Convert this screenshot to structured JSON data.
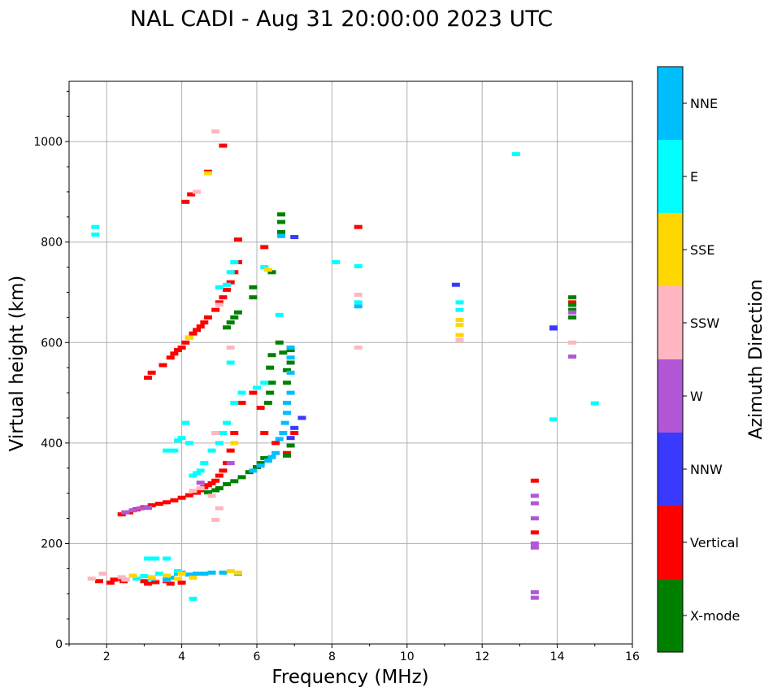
{
  "chart_data": {
    "type": "scatter",
    "title": "NAL CADI - Aug 31 20:00:00 2023 UTC",
    "xlabel": "Frequency (MHz)",
    "ylabel": "Virtual height (km)",
    "xlim": [
      1,
      16
    ],
    "ylim": [
      0,
      1120
    ],
    "xticks": [
      2,
      4,
      6,
      8,
      10,
      12,
      14,
      16
    ],
    "yticks": [
      0,
      200,
      400,
      600,
      800,
      1000
    ],
    "grid": true,
    "colorbar": {
      "title": "Azimuth Direction",
      "categories": [
        {
          "name": "X-mode",
          "color": "#008000"
        },
        {
          "name": "Vertical",
          "color": "#ff0000"
        },
        {
          "name": "NNW",
          "color": "#3a3aff"
        },
        {
          "name": "W",
          "color": "#b157d6"
        },
        {
          "name": "SSW",
          "color": "#ffb6c1"
        },
        {
          "name": "SSE",
          "color": "#ffd700"
        },
        {
          "name": "E",
          "color": "#00ffff"
        },
        {
          "name": "NNE",
          "color": "#00bfff"
        }
      ]
    },
    "series": [
      {
        "name": "Vertical",
        "points": [
          [
            1.8,
            125
          ],
          [
            2.1,
            122
          ],
          [
            2.2,
            128
          ],
          [
            2.4,
            130
          ],
          [
            2.45,
            125
          ],
          [
            2.5,
            128
          ],
          [
            3.0,
            125
          ],
          [
            3.1,
            120
          ],
          [
            3.3,
            123
          ],
          [
            3.6,
            125
          ],
          [
            3.7,
            120
          ],
          [
            4.0,
            122
          ],
          [
            4.4,
            140
          ],
          [
            2.4,
            258
          ],
          [
            2.6,
            262
          ],
          [
            2.8,
            268
          ],
          [
            3.0,
            272
          ],
          [
            3.2,
            276
          ],
          [
            3.4,
            279
          ],
          [
            3.6,
            282
          ],
          [
            3.8,
            286
          ],
          [
            4.0,
            291
          ],
          [
            4.2,
            296
          ],
          [
            4.4,
            301
          ],
          [
            4.5,
            306
          ],
          [
            4.6,
            312
          ],
          [
            4.7,
            316
          ],
          [
            4.8,
            320
          ],
          [
            4.9,
            325
          ],
          [
            5.0,
            335
          ],
          [
            5.1,
            345
          ],
          [
            5.2,
            360
          ],
          [
            5.3,
            385
          ],
          [
            5.4,
            420
          ],
          [
            5.6,
            480
          ],
          [
            3.1,
            530
          ],
          [
            3.2,
            540
          ],
          [
            3.5,
            555
          ],
          [
            3.7,
            570
          ],
          [
            3.8,
            578
          ],
          [
            3.9,
            585
          ],
          [
            4.0,
            590
          ],
          [
            4.1,
            600
          ],
          [
            4.2,
            610
          ],
          [
            4.3,
            618
          ],
          [
            4.4,
            625
          ],
          [
            4.5,
            632
          ],
          [
            4.6,
            640
          ],
          [
            4.7,
            650
          ],
          [
            4.9,
            665
          ],
          [
            5.0,
            680
          ],
          [
            5.1,
            690
          ],
          [
            5.2,
            705
          ],
          [
            5.3,
            720
          ],
          [
            5.4,
            740
          ],
          [
            5.5,
            760
          ],
          [
            5.9,
            500
          ],
          [
            6.1,
            470
          ],
          [
            6.2,
            420
          ],
          [
            6.5,
            400
          ],
          [
            6.8,
            380
          ],
          [
            7.0,
            420
          ],
          [
            4.1,
            880
          ],
          [
            4.25,
            895
          ],
          [
            4.7,
            940
          ],
          [
            5.1,
            992
          ],
          [
            5.5,
            805
          ],
          [
            6.2,
            790
          ],
          [
            8.7,
            830
          ],
          [
            13.4,
            325
          ],
          [
            13.4,
            222
          ],
          [
            14.4,
            680
          ]
        ]
      },
      {
        "name": "X-mode",
        "points": [
          [
            4.7,
            302
          ],
          [
            4.9,
            306
          ],
          [
            5.0,
            310
          ],
          [
            5.2,
            318
          ],
          [
            5.4,
            324
          ],
          [
            5.6,
            332
          ],
          [
            5.8,
            342
          ],
          [
            6.0,
            352
          ],
          [
            6.1,
            360
          ],
          [
            6.2,
            370
          ],
          [
            5.2,
            630
          ],
          [
            5.3,
            640
          ],
          [
            5.4,
            650
          ],
          [
            5.5,
            660
          ],
          [
            5.9,
            690
          ],
          [
            5.9,
            710
          ],
          [
            6.4,
            740
          ],
          [
            6.3,
            480
          ],
          [
            6.35,
            500
          ],
          [
            6.4,
            520
          ],
          [
            6.35,
            550
          ],
          [
            6.4,
            575
          ],
          [
            6.6,
            600
          ],
          [
            6.7,
            580
          ],
          [
            6.8,
            545
          ],
          [
            6.8,
            520
          ],
          [
            6.9,
            585
          ],
          [
            6.9,
            560
          ],
          [
            6.65,
            855
          ],
          [
            6.65,
            840
          ],
          [
            6.65,
            820
          ],
          [
            6.8,
            375
          ],
          [
            6.9,
            395
          ],
          [
            14.4,
            690
          ],
          [
            14.4,
            675
          ],
          [
            14.4,
            665
          ],
          [
            14.4,
            650
          ]
        ]
      },
      {
        "name": "NNE",
        "points": [
          [
            4.4,
            140
          ],
          [
            4.6,
            140
          ],
          [
            4.8,
            142
          ],
          [
            5.1,
            142
          ],
          [
            5.5,
            140
          ],
          [
            3.6,
            130
          ],
          [
            3.9,
            140
          ],
          [
            4.0,
            142
          ],
          [
            4.2,
            138
          ],
          [
            5.9,
            345
          ],
          [
            6.1,
            355
          ],
          [
            6.3,
            365
          ],
          [
            6.4,
            372
          ],
          [
            6.5,
            380
          ],
          [
            6.6,
            408
          ],
          [
            6.7,
            420
          ],
          [
            6.75,
            440
          ],
          [
            6.8,
            460
          ],
          [
            6.9,
            590
          ],
          [
            6.9,
            570
          ],
          [
            6.9,
            540
          ],
          [
            6.9,
            500
          ],
          [
            6.8,
            480
          ],
          [
            6.65,
            812
          ],
          [
            8.7,
            672
          ],
          [
            3.6,
            127
          ],
          [
            3.7,
            132
          ]
        ]
      },
      {
        "name": "E",
        "points": [
          [
            2.8,
            130
          ],
          [
            3.0,
            135
          ],
          [
            3.2,
            130
          ],
          [
            3.4,
            140
          ],
          [
            3.1,
            170
          ],
          [
            3.3,
            170
          ],
          [
            3.6,
            170
          ],
          [
            3.9,
            145
          ],
          [
            4.3,
            90
          ],
          [
            3.6,
            385
          ],
          [
            3.8,
            385
          ],
          [
            3.9,
            405
          ],
          [
            4.0,
            410
          ],
          [
            4.1,
            440
          ],
          [
            4.2,
            400
          ],
          [
            4.3,
            335
          ],
          [
            4.4,
            340
          ],
          [
            4.5,
            345
          ],
          [
            4.6,
            360
          ],
          [
            4.8,
            385
          ],
          [
            5.0,
            400
          ],
          [
            5.1,
            420
          ],
          [
            5.2,
            440
          ],
          [
            5.4,
            480
          ],
          [
            5.6,
            500
          ],
          [
            5.0,
            710
          ],
          [
            5.2,
            715
          ],
          [
            5.3,
            740
          ],
          [
            5.4,
            760
          ],
          [
            5.3,
            560
          ],
          [
            6.0,
            510
          ],
          [
            6.2,
            520
          ],
          [
            6.6,
            655
          ],
          [
            6.2,
            750
          ],
          [
            8.1,
            760
          ],
          [
            8.7,
            752
          ],
          [
            8.7,
            680
          ],
          [
            11.4,
            665
          ],
          [
            11.4,
            680
          ],
          [
            12.9,
            975
          ],
          [
            13.9,
            447
          ],
          [
            15.0,
            479
          ],
          [
            1.7,
            815
          ],
          [
            1.7,
            830
          ]
        ]
      },
      {
        "name": "SSE",
        "points": [
          [
            2.7,
            136
          ],
          [
            3.2,
            133
          ],
          [
            3.6,
            136
          ],
          [
            3.9,
            130
          ],
          [
            4.0,
            140
          ],
          [
            4.3,
            132
          ],
          [
            5.3,
            145
          ],
          [
            5.5,
            142
          ],
          [
            5.4,
            400
          ],
          [
            6.3,
            745
          ],
          [
            11.4,
            615
          ],
          [
            11.4,
            635
          ],
          [
            11.4,
            645
          ],
          [
            4.7,
            937
          ],
          [
            4.2,
            610
          ]
        ]
      },
      {
        "name": "SSW",
        "points": [
          [
            1.6,
            130
          ],
          [
            1.9,
            140
          ],
          [
            2.4,
            133
          ],
          [
            2.5,
            128
          ],
          [
            4.3,
            305
          ],
          [
            4.5,
            310
          ],
          [
            4.8,
            295
          ],
          [
            4.9,
            420
          ],
          [
            4.9,
            247
          ],
          [
            5.0,
            270
          ],
          [
            4.4,
            900
          ],
          [
            4.9,
            1020
          ],
          [
            8.7,
            695
          ],
          [
            8.7,
            590
          ],
          [
            11.4,
            605
          ],
          [
            14.4,
            600
          ],
          [
            5.0,
            675
          ],
          [
            5.3,
            590
          ]
        ]
      },
      {
        "name": "W",
        "points": [
          [
            2.5,
            262
          ],
          [
            2.7,
            266
          ],
          [
            2.9,
            270
          ],
          [
            3.1,
            271
          ],
          [
            4.5,
            321
          ],
          [
            5.3,
            360
          ],
          [
            13.4,
            295
          ],
          [
            13.4,
            280
          ],
          [
            13.4,
            250
          ],
          [
            13.4,
            200
          ],
          [
            13.4,
            192
          ],
          [
            13.4,
            103
          ],
          [
            13.4,
            92
          ],
          [
            14.4,
            572
          ],
          [
            14.4,
            660
          ]
        ]
      },
      {
        "name": "NNW",
        "points": [
          [
            7.0,
            430
          ],
          [
            7.2,
            450
          ],
          [
            7.0,
            810
          ],
          [
            11.3,
            715
          ],
          [
            13.9,
            630
          ],
          [
            13.9,
            628
          ],
          [
            6.9,
            410
          ]
        ]
      }
    ]
  }
}
